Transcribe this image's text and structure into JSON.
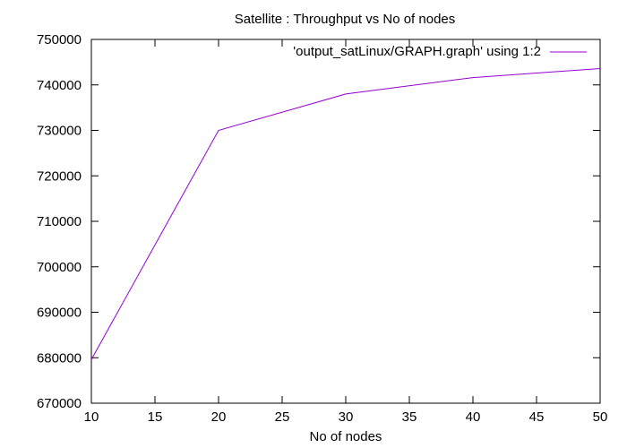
{
  "chart_data": {
    "type": "line",
    "title": "Satellite : Throughput vs No of nodes",
    "xlabel": "No of nodes",
    "ylabel": "",
    "xlim": [
      10,
      50
    ],
    "ylim": [
      670000,
      750000
    ],
    "xticks": [
      "10",
      "15",
      "20",
      "25",
      "30",
      "35",
      "40",
      "45",
      "50"
    ],
    "yticks": [
      "670000",
      "680000",
      "690000",
      "700000",
      "710000",
      "720000",
      "730000",
      "740000",
      "750000"
    ],
    "grid": false,
    "legend_position": "top-right",
    "series": [
      {
        "name": "'output_satLinux/GRAPH.graph' using 1:2",
        "color": "#9400d3",
        "x": [
          10,
          20,
          30,
          40,
          50
        ],
        "y": [
          679600,
          730000,
          738000,
          741600,
          743600
        ]
      }
    ]
  }
}
